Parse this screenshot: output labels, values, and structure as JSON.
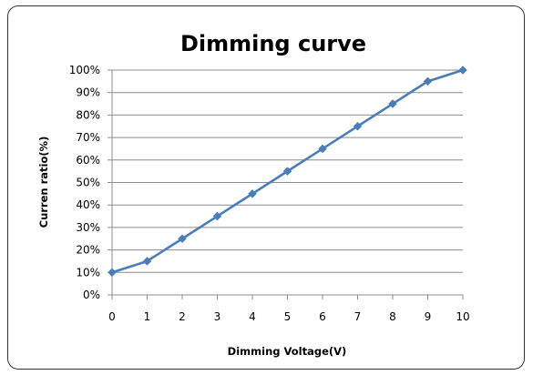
{
  "chart_data": {
    "type": "line",
    "title": "Dimming curve",
    "xlabel": "Dimming Voltage(V)",
    "ylabel": "Curren ratio(%)",
    "x": [
      0,
      1,
      2,
      3,
      4,
      5,
      6,
      7,
      8,
      9,
      10
    ],
    "series": [
      {
        "values": [
          10,
          15,
          25,
          35,
          45,
          55,
          65,
          75,
          85,
          95,
          100
        ]
      }
    ],
    "xlim": [
      0,
      10
    ],
    "ylim": [
      0,
      100
    ],
    "x_ticks": [
      "0",
      "1",
      "2",
      "3",
      "4",
      "5",
      "6",
      "7",
      "8",
      "9",
      "10"
    ],
    "y_ticks": [
      "0%",
      "10%",
      "20%",
      "30%",
      "40%",
      "50%",
      "60%",
      "70%",
      "80%",
      "90%",
      "100%"
    ],
    "grid": "horizontal",
    "marker": "diamond",
    "line_color": "#4a7ebb",
    "marker_color": "#4a7ebb",
    "grid_color": "#8c8c8c"
  }
}
